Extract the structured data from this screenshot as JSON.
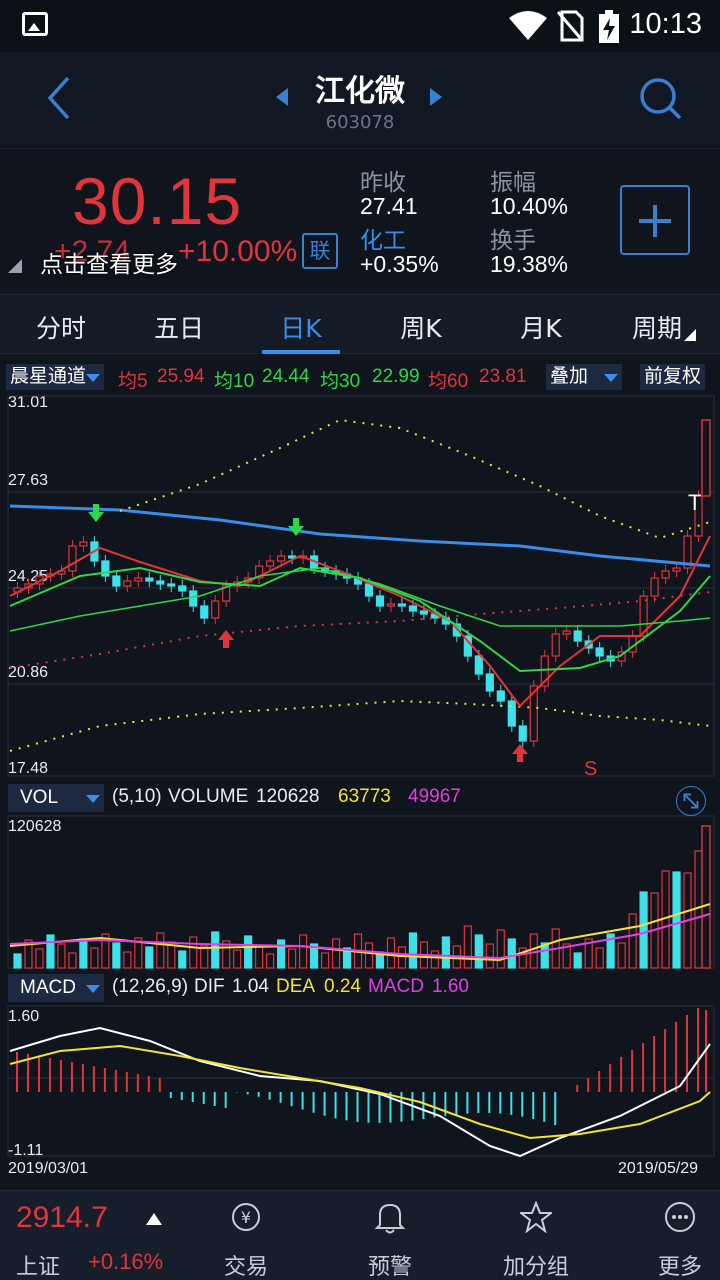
{
  "status": {
    "time": "10:13"
  },
  "header": {
    "title": "江化微",
    "code": "603078"
  },
  "quote": {
    "price": "30.15",
    "change": "+2.74",
    "change_pct": "+10.00%",
    "hint": "点击查看更多",
    "link_label": "联",
    "prev_close_label": "昨收",
    "prev_close": "27.41",
    "amplitude_label": "振幅",
    "amplitude": "10.40%",
    "sector_label": "化工",
    "sector_change": "+0.35%",
    "turnover_label": "换手",
    "turnover": "19.38%"
  },
  "tabs": [
    "分时",
    "五日",
    "日K",
    "周K",
    "月K",
    "周期"
  ],
  "active_tab": "日K",
  "kline": {
    "indicator": "晨星通道",
    "ma_labels": [
      {
        "label": "均5",
        "value": "25.94",
        "color": "#e0353b"
      },
      {
        "label": "均10",
        "value": "24.44",
        "color": "#2fd64a"
      },
      {
        "label": "均30",
        "value": "22.99",
        "color": "#2fd64a"
      },
      {
        "label": "均60",
        "value": "23.81",
        "color": "#e0353b"
      }
    ],
    "overlay_label": "叠加",
    "fq_label": "前复权",
    "y_labels": [
      "31.01",
      "27.63",
      "24.25",
      "20.86",
      "17.48"
    ],
    "marker_s": "S",
    "marker_t": "T"
  },
  "volume": {
    "label": "VOL",
    "params": "(5,10)",
    "volume_label": "VOLUME",
    "volume": "120628",
    "ma5": "63773",
    "ma10": "49967",
    "ma5_color": "#f2e23a",
    "ma10_color": "#e040e0",
    "max_label": "120628"
  },
  "macd": {
    "label": "MACD",
    "params": "(12,26,9)",
    "dif_label": "DIF",
    "dif": "1.04",
    "dea_label": "DEA",
    "dea": "0.24",
    "macd_label": "MACD",
    "macd": "1.60",
    "max_label": "1.60",
    "min_label": "-1.11"
  },
  "dates": {
    "start": "2019/03/01",
    "end": "2019/05/29"
  },
  "bottom": {
    "index_value": "2914.7",
    "index_name": "上证",
    "index_pct": "+0.16%",
    "nav": [
      {
        "label": "交易",
        "icon": "trade-icon"
      },
      {
        "label": "预警",
        "icon": "bell-icon"
      },
      {
        "label": "加分组",
        "icon": "star-icon"
      },
      {
        "label": "更多",
        "icon": "more-icon"
      }
    ]
  },
  "colors": {
    "up": "#e0353b",
    "down": "#3fe0e8",
    "accent": "#3a8de8",
    "background": "#0f141d"
  }
}
